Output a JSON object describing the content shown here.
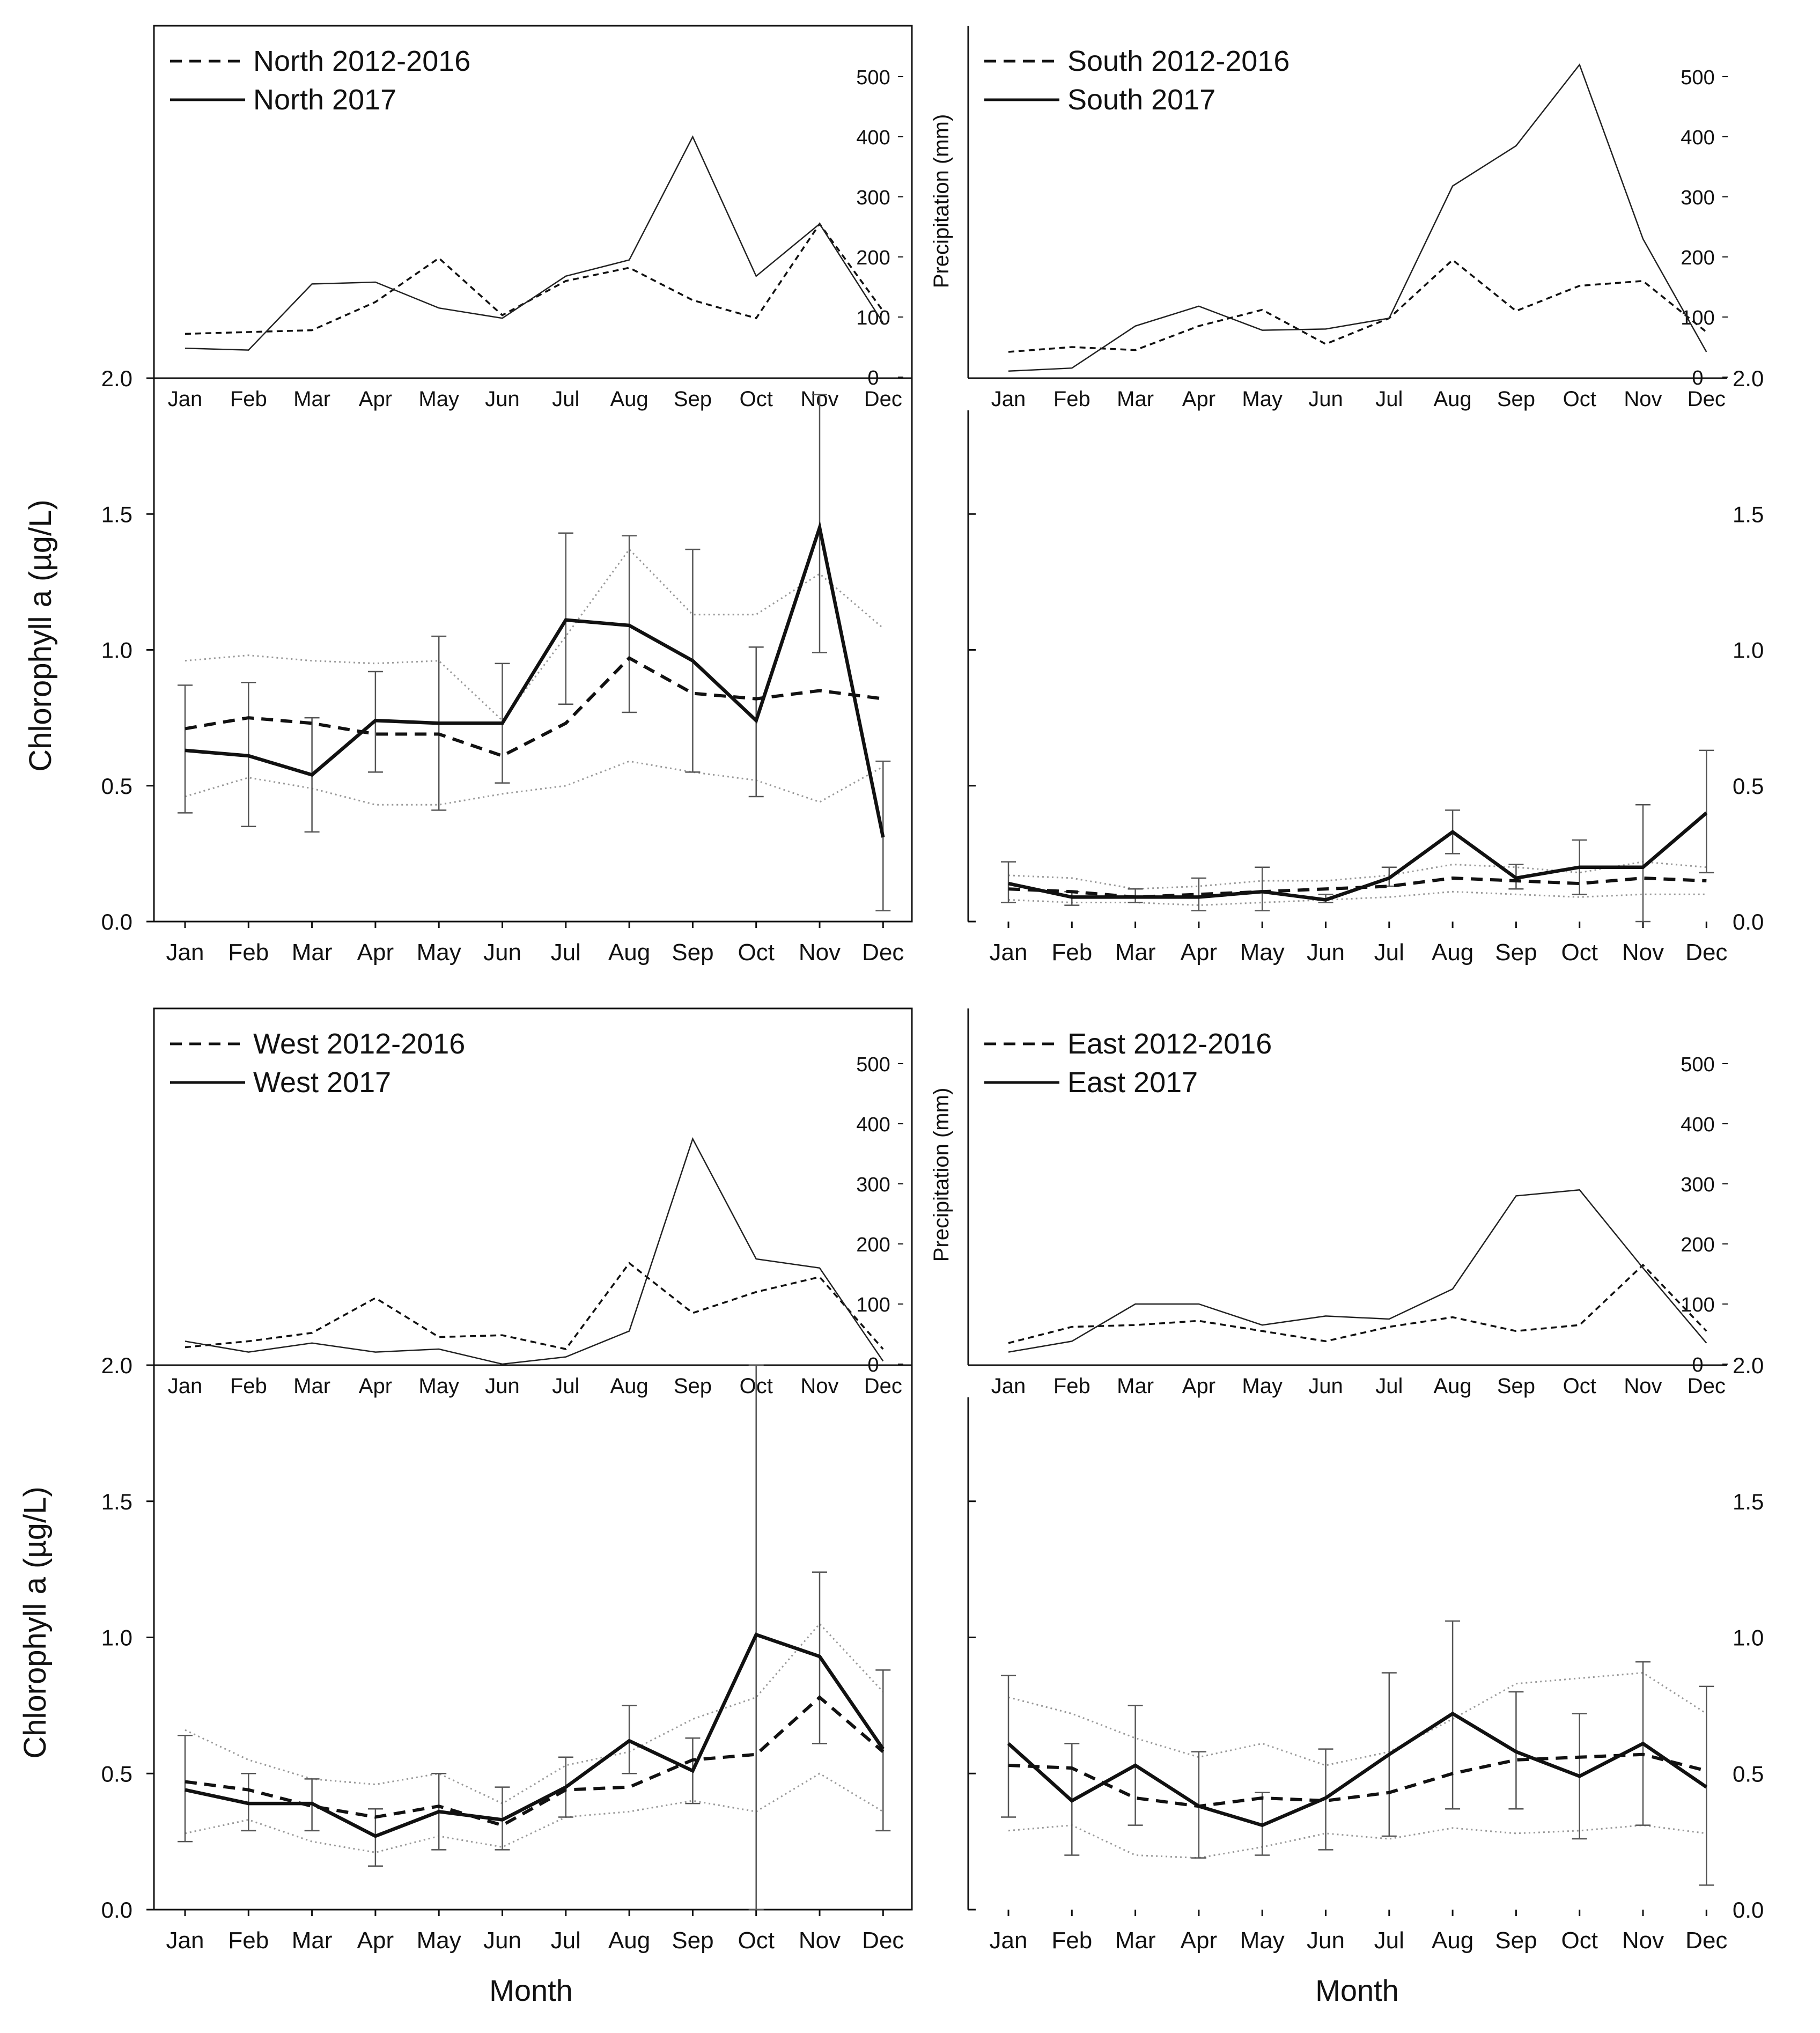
{
  "figure": {
    "months": [
      "Jan",
      "Feb",
      "Mar",
      "Apr",
      "May",
      "Jun",
      "Jul",
      "Aug",
      "Sep",
      "Oct",
      "Nov",
      "Dec"
    ],
    "chl_ylabel": "Chlorophyll a (µg/L)",
    "precip_ylabel": "Precipitation (mm)",
    "xlabel": "Month",
    "chl_ticks": [
      "0.0",
      "0.5",
      "1.0",
      "1.5",
      "2.0"
    ],
    "precip_ticks": [
      "0",
      "100",
      "200",
      "300",
      "400",
      "500"
    ],
    "colors": {
      "line": "#111111",
      "band": "#999999",
      "errorbar": "#555555"
    }
  },
  "chart_data": [
    {
      "type": "line",
      "region": "North",
      "legend": [
        {
          "label": "North 2012-2016",
          "style": "dashed"
        },
        {
          "label": "North 2017",
          "style": "solid"
        }
      ],
      "precipitation": {
        "ylim": [
          0,
          500
        ],
        "baseline": [
          72,
          75,
          78,
          125,
          198,
          103,
          160,
          182,
          128,
          98,
          255,
          110
        ],
        "year2017": [
          48,
          45,
          155,
          158,
          115,
          98,
          168,
          195,
          400,
          168,
          255,
          90
        ]
      },
      "chlorophyll": {
        "ylim": [
          0,
          2.0
        ],
        "baseline": [
          0.71,
          0.75,
          0.73,
          0.69,
          0.69,
          0.61,
          0.73,
          0.97,
          0.84,
          0.82,
          0.85,
          0.82
        ],
        "baseline_upper": [
          0.96,
          0.98,
          0.96,
          0.95,
          0.96,
          0.74,
          1.05,
          1.37,
          1.13,
          1.13,
          1.28,
          1.08
        ],
        "baseline_lower": [
          0.46,
          0.53,
          0.49,
          0.43,
          0.43,
          0.47,
          0.5,
          0.59,
          0.55,
          0.52,
          0.44,
          0.57
        ],
        "year2017": [
          0.63,
          0.61,
          0.54,
          0.74,
          0.73,
          0.73,
          1.11,
          1.09,
          0.96,
          0.74,
          1.45,
          0.31
        ],
        "error_upper": [
          0.87,
          0.88,
          0.75,
          0.92,
          1.05,
          0.95,
          1.43,
          1.42,
          1.37,
          1.01,
          1.94,
          0.59
        ],
        "error_lower": [
          0.4,
          0.35,
          0.33,
          0.55,
          0.41,
          0.51,
          0.8,
          0.77,
          0.55,
          0.46,
          0.99,
          0.04
        ]
      }
    },
    {
      "type": "line",
      "region": "South",
      "legend": [
        {
          "label": "South 2012-2016",
          "style": "dashed"
        },
        {
          "label": "South 2017",
          "style": "solid"
        }
      ],
      "precipitation": {
        "ylim": [
          0,
          500
        ],
        "baseline": [
          42,
          50,
          45,
          85,
          112,
          55,
          98,
          195,
          110,
          152,
          160,
          75
        ],
        "year2017": [
          10,
          15,
          85,
          118,
          78,
          80,
          98,
          318,
          385,
          520,
          230,
          42
        ]
      },
      "chlorophyll": {
        "ylim": [
          0,
          2.0
        ],
        "baseline": [
          0.12,
          0.11,
          0.09,
          0.1,
          0.11,
          0.12,
          0.13,
          0.16,
          0.15,
          0.14,
          0.16,
          0.15
        ],
        "baseline_upper": [
          0.17,
          0.16,
          0.12,
          0.13,
          0.15,
          0.15,
          0.17,
          0.21,
          0.2,
          0.18,
          0.22,
          0.2
        ],
        "baseline_lower": [
          0.08,
          0.07,
          0.07,
          0.06,
          0.07,
          0.08,
          0.09,
          0.11,
          0.1,
          0.09,
          0.1,
          0.1
        ],
        "year2017": [
          0.14,
          0.09,
          0.09,
          0.09,
          0.11,
          0.08,
          0.16,
          0.33,
          0.16,
          0.2,
          0.2,
          0.4
        ],
        "error_upper": [
          0.22,
          0.11,
          0.12,
          0.16,
          0.2,
          0.1,
          0.2,
          0.41,
          0.21,
          0.3,
          0.43,
          0.63
        ],
        "error_lower": [
          0.07,
          0.06,
          0.07,
          0.04,
          0.04,
          0.07,
          0.13,
          0.25,
          0.12,
          0.1,
          0.0,
          0.18
        ]
      }
    },
    {
      "type": "line",
      "region": "West",
      "legend": [
        {
          "label": "West 2012-2016",
          "style": "dashed"
        },
        {
          "label": "West 2017",
          "style": "solid"
        }
      ],
      "precipitation": {
        "ylim": [
          0,
          500
        ],
        "baseline": [
          28,
          38,
          52,
          110,
          45,
          48,
          25,
          168,
          85,
          120,
          145,
          25
        ],
        "year2017": [
          38,
          20,
          35,
          20,
          25,
          0,
          12,
          55,
          375,
          175,
          160,
          5
        ]
      },
      "chlorophyll": {
        "ylim": [
          0,
          2.0
        ],
        "baseline": [
          0.47,
          0.44,
          0.38,
          0.34,
          0.38,
          0.31,
          0.44,
          0.45,
          0.55,
          0.57,
          0.78,
          0.58
        ],
        "baseline_upper": [
          0.66,
          0.55,
          0.48,
          0.46,
          0.5,
          0.39,
          0.53,
          0.58,
          0.7,
          0.78,
          1.05,
          0.8
        ],
        "baseline_lower": [
          0.28,
          0.33,
          0.25,
          0.21,
          0.27,
          0.23,
          0.34,
          0.36,
          0.4,
          0.36,
          0.5,
          0.36
        ],
        "year2017": [
          0.44,
          0.39,
          0.39,
          0.27,
          0.36,
          0.33,
          0.45,
          0.62,
          0.51,
          1.01,
          0.93,
          0.59
        ],
        "error_upper": [
          0.64,
          0.5,
          0.48,
          0.37,
          0.5,
          0.45,
          0.56,
          0.75,
          0.63,
          2.0,
          1.24,
          0.88
        ],
        "error_lower": [
          0.25,
          0.29,
          0.29,
          0.16,
          0.22,
          0.22,
          0.34,
          0.5,
          0.39,
          0.0,
          0.61,
          0.29
        ]
      }
    },
    {
      "type": "line",
      "region": "East",
      "legend": [
        {
          "label": "East 2012-2016",
          "style": "dashed"
        },
        {
          "label": "East 2017",
          "style": "solid"
        }
      ],
      "precipitation": {
        "ylim": [
          0,
          500
        ],
        "baseline": [
          35,
          62,
          65,
          72,
          55,
          38,
          62,
          78,
          55,
          65,
          165,
          55
        ],
        "year2017": [
          20,
          38,
          100,
          100,
          65,
          80,
          75,
          125,
          280,
          290,
          160,
          35
        ]
      },
      "chlorophyll": {
        "ylim": [
          0,
          2.0
        ],
        "baseline": [
          0.53,
          0.52,
          0.41,
          0.38,
          0.41,
          0.4,
          0.43,
          0.5,
          0.55,
          0.56,
          0.57,
          0.51
        ],
        "baseline_upper": [
          0.78,
          0.72,
          0.63,
          0.56,
          0.61,
          0.53,
          0.58,
          0.7,
          0.83,
          0.85,
          0.87,
          0.72
        ],
        "baseline_lower": [
          0.29,
          0.31,
          0.2,
          0.19,
          0.23,
          0.28,
          0.26,
          0.3,
          0.28,
          0.29,
          0.31,
          0.28
        ],
        "year2017": [
          0.61,
          0.4,
          0.53,
          0.38,
          0.31,
          0.41,
          0.57,
          0.72,
          0.58,
          0.49,
          0.61,
          0.45
        ],
        "error_upper": [
          0.86,
          0.61,
          0.75,
          0.58,
          0.43,
          0.59,
          0.87,
          1.06,
          0.8,
          0.72,
          0.91,
          0.82
        ],
        "error_lower": [
          0.34,
          0.2,
          0.31,
          0.19,
          0.2,
          0.22,
          0.27,
          0.37,
          0.37,
          0.26,
          0.31,
          0.09
        ]
      }
    }
  ]
}
